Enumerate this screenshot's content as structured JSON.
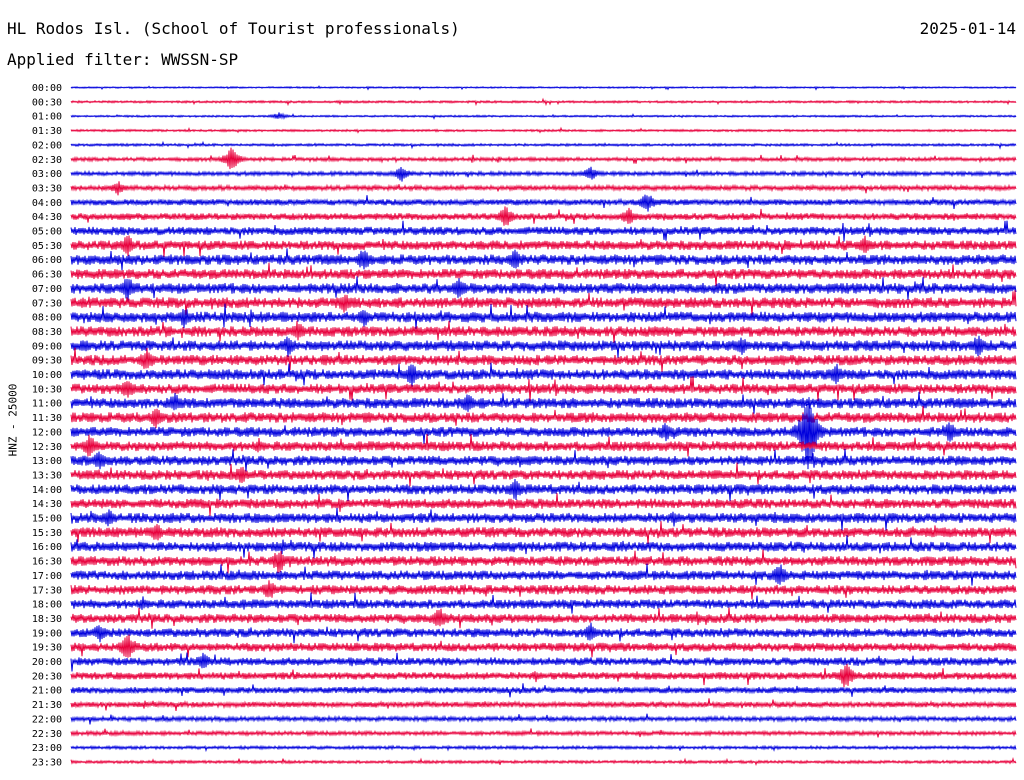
{
  "header": {
    "station": "HL Rodos Isl. (School of Tourist professionals)",
    "date": "2025-01-14",
    "filter": "Applied filter: WWSSN-SP"
  },
  "chart_data": {
    "type": "line",
    "ylabel": "HNZ - 25000",
    "row_labels": [
      "00:00",
      "00:30",
      "01:00",
      "01:30",
      "02:00",
      "02:30",
      "03:00",
      "03:30",
      "04:00",
      "04:30",
      "05:00",
      "05:30",
      "06:00",
      "06:30",
      "07:00",
      "07:30",
      "08:00",
      "08:30",
      "09:00",
      "09:30",
      "10:00",
      "10:30",
      "11:00",
      "11:30",
      "12:00",
      "12:30",
      "13:00",
      "13:30",
      "14:00",
      "14:30",
      "15:00",
      "15:30",
      "16:00",
      "16:30",
      "17:00",
      "17:30",
      "18:00",
      "18:30",
      "19:00",
      "19:30",
      "20:00",
      "20:30",
      "21:00",
      "21:30",
      "22:00",
      "22:30",
      "23:00",
      "23:30"
    ],
    "row_amplitude": [
      0.5,
      0.7,
      0.6,
      0.7,
      0.8,
      1.2,
      1.3,
      1.6,
      2.0,
      2.3,
      2.8,
      3.2,
      3.5,
      3.4,
      3.6,
      3.6,
      3.6,
      3.5,
      3.6,
      3.5,
      3.5,
      3.4,
      3.5,
      3.5,
      3.3,
      3.3,
      3.3,
      3.3,
      3.4,
      3.3,
      3.4,
      3.4,
      3.3,
      3.3,
      3.2,
      3.2,
      3.1,
      3.1,
      3.0,
      2.9,
      2.7,
      2.5,
      2.1,
      1.8,
      1.5,
      1.3,
      1.0,
      0.9
    ],
    "events": [
      {
        "row": 2,
        "frac": 0.22,
        "amp": 4
      },
      {
        "row": 5,
        "frac": 0.17,
        "amp": 13
      },
      {
        "row": 6,
        "frac": 0.35,
        "amp": 9
      },
      {
        "row": 6,
        "frac": 0.55,
        "amp": 8
      },
      {
        "row": 7,
        "frac": 0.05,
        "amp": 8
      },
      {
        "row": 8,
        "frac": 0.61,
        "amp": 12
      },
      {
        "row": 9,
        "frac": 0.46,
        "amp": 12
      },
      {
        "row": 9,
        "frac": 0.59,
        "amp": 10
      },
      {
        "row": 11,
        "frac": 0.06,
        "amp": 12
      },
      {
        "row": 11,
        "frac": 0.84,
        "amp": 11
      },
      {
        "row": 12,
        "frac": 0.31,
        "amp": 14
      },
      {
        "row": 12,
        "frac": 0.47,
        "amp": 12
      },
      {
        "row": 14,
        "frac": 0.06,
        "amp": 14
      },
      {
        "row": 14,
        "frac": 0.41,
        "amp": 12
      },
      {
        "row": 15,
        "frac": 0.29,
        "amp": 12
      },
      {
        "row": 16,
        "frac": 0.12,
        "amp": 12
      },
      {
        "row": 16,
        "frac": 0.31,
        "amp": 11
      },
      {
        "row": 17,
        "frac": 0.24,
        "amp": 12
      },
      {
        "row": 18,
        "frac": 0.23,
        "amp": 12
      },
      {
        "row": 18,
        "frac": 0.71,
        "amp": 11
      },
      {
        "row": 18,
        "frac": 0.96,
        "amp": 13
      },
      {
        "row": 19,
        "frac": 0.08,
        "amp": 13
      },
      {
        "row": 20,
        "frac": 0.36,
        "amp": 14
      },
      {
        "row": 20,
        "frac": 0.81,
        "amp": 12
      },
      {
        "row": 21,
        "frac": 0.06,
        "amp": 12
      },
      {
        "row": 22,
        "frac": 0.11,
        "amp": 12
      },
      {
        "row": 22,
        "frac": 0.42,
        "amp": 12
      },
      {
        "row": 23,
        "frac": 0.09,
        "amp": 12
      },
      {
        "row": 24,
        "frac": 0.63,
        "amp": 12
      },
      {
        "row": 24,
        "frac": 0.78,
        "amp": 48
      },
      {
        "row": 24,
        "frac": 0.93,
        "amp": 12
      },
      {
        "row": 25,
        "frac": 0.02,
        "amp": 14
      },
      {
        "row": 26,
        "frac": 0.03,
        "amp": 12
      },
      {
        "row": 27,
        "frac": 0.18,
        "amp": 11
      },
      {
        "row": 28,
        "frac": 0.47,
        "amp": 13
      },
      {
        "row": 30,
        "frac": 0.04,
        "amp": 11
      },
      {
        "row": 31,
        "frac": 0.09,
        "amp": 11
      },
      {
        "row": 33,
        "frac": 0.22,
        "amp": 14
      },
      {
        "row": 34,
        "frac": 0.75,
        "amp": 14
      },
      {
        "row": 35,
        "frac": 0.21,
        "amp": 12
      },
      {
        "row": 37,
        "frac": 0.39,
        "amp": 13
      },
      {
        "row": 38,
        "frac": 0.03,
        "amp": 11
      },
      {
        "row": 38,
        "frac": 0.55,
        "amp": 11
      },
      {
        "row": 39,
        "frac": 0.06,
        "amp": 16
      },
      {
        "row": 40,
        "frac": 0.14,
        "amp": 11
      },
      {
        "row": 41,
        "frac": 0.82,
        "amp": 15
      }
    ],
    "series_colors": [
      "#0000dd",
      "#e8003c"
    ]
  }
}
